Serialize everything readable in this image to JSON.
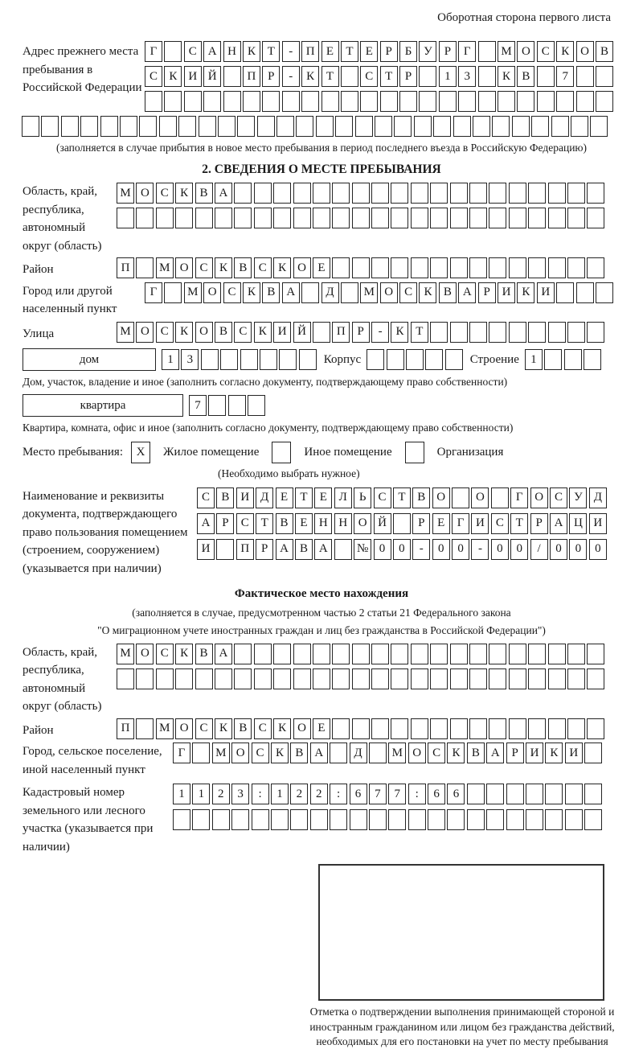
{
  "page": {
    "header_note": "Оборотная сторона первого листа"
  },
  "prev_address": {
    "label": "Адрес прежнего места пребывания в Российской Федерации",
    "rows": [
      [
        "Г",
        "",
        "С",
        "А",
        "Н",
        "К",
        "Т",
        "-",
        "П",
        "Е",
        "Т",
        "Е",
        "Р",
        "Б",
        "У",
        "Р",
        "Г",
        "",
        "М",
        "О",
        "С",
        "К",
        "О",
        "В"
      ],
      [
        "С",
        "К",
        "И",
        "Й",
        "",
        "П",
        "Р",
        "-",
        "К",
        "Т",
        "",
        "С",
        "Т",
        "Р",
        "",
        "1",
        "3",
        "",
        "К",
        "В",
        "",
        "7",
        "",
        ""
      ],
      [
        "",
        "",
        "",
        "",
        "",
        "",
        "",
        "",
        "",
        "",
        "",
        "",
        "",
        "",
        "",
        "",
        "",
        "",
        "",
        "",
        "",
        "",
        "",
        ""
      ]
    ],
    "full_row": [
      "",
      "",
      "",
      "",
      "",
      "",
      "",
      "",
      "",
      "",
      "",
      "",
      "",
      "",
      "",
      "",
      "",
      "",
      "",
      "",
      "",
      "",
      "",
      "",
      "",
      "",
      "",
      "",
      "",
      ""
    ],
    "note": "(заполняется в случае прибытия в новое место пребывания в период последнего въезда в Российскую Федерацию)"
  },
  "section2": {
    "title": "2. СВЕДЕНИЯ О МЕСТЕ ПРЕБЫВАНИЯ",
    "region": {
      "label": "Область, край, республика, автономный округ (область)",
      "rows": [
        [
          "М",
          "О",
          "С",
          "К",
          "В",
          "А",
          "",
          "",
          "",
          "",
          "",
          "",
          "",
          "",
          "",
          "",
          "",
          "",
          "",
          "",
          "",
          "",
          "",
          "",
          ""
        ],
        [
          "",
          "",
          "",
          "",
          "",
          "",
          "",
          "",
          "",
          "",
          "",
          "",
          "",
          "",
          "",
          "",
          "",
          "",
          "",
          "",
          "",
          "",
          "",
          "",
          ""
        ]
      ]
    },
    "district": {
      "label": "Район",
      "row": [
        "П",
        "",
        "М",
        "О",
        "С",
        "К",
        "В",
        "С",
        "К",
        "О",
        "Е",
        "",
        "",
        "",
        "",
        "",
        "",
        "",
        "",
        "",
        "",
        "",
        "",
        "",
        ""
      ]
    },
    "city": {
      "label": "Город или другой населенный пункт",
      "row": [
        "Г",
        "",
        "М",
        "О",
        "С",
        "К",
        "В",
        "А",
        "",
        "Д",
        "",
        "М",
        "О",
        "С",
        "К",
        "В",
        "А",
        "Р",
        "И",
        "К",
        "И",
        "",
        "",
        ""
      ]
    },
    "street": {
      "label": "Улица",
      "row": [
        "М",
        "О",
        "С",
        "К",
        "О",
        "В",
        "С",
        "К",
        "И",
        "Й",
        "",
        "П",
        "Р",
        "-",
        "К",
        "Т",
        "",
        "",
        "",
        "",
        "",
        "",
        "",
        "",
        ""
      ]
    },
    "house": {
      "type_label": "дом",
      "number": [
        "1",
        "3",
        "",
        "",
        "",
        "",
        "",
        ""
      ],
      "korpus_label": "Корпус",
      "korpus": [
        "",
        "",
        "",
        "",
        ""
      ],
      "stroenie_label": "Строение",
      "stroenie": [
        "1",
        "",
        "",
        ""
      ],
      "note": "Дом, участок, владение и иное (заполнить согласно документу, подтверждающему право собственности)"
    },
    "apartment": {
      "type_label": "квартира",
      "number": [
        "7",
        "",
        "",
        ""
      ],
      "note": "Квартира, комната, офис и иное (заполнить согласно документу, подтверждающему право собственности)"
    },
    "place_type": {
      "label": "Место пребывания:",
      "options": [
        {
          "label": "Жилое помещение",
          "mark": "X"
        },
        {
          "label": "Иное помещение",
          "mark": ""
        },
        {
          "label": "Организация",
          "mark": ""
        }
      ],
      "note": "(Необходимо выбрать нужное)"
    },
    "document": {
      "label": "Наименование и реквизиты документа, подтверждающего право пользования помещением (строением, сооружением) (указывается при наличии)",
      "rows": [
        [
          "С",
          "В",
          "И",
          "Д",
          "Е",
          "Т",
          "Е",
          "Л",
          "Ь",
          "С",
          "Т",
          "В",
          "О",
          "",
          "О",
          "",
          "Г",
          "О",
          "С",
          "У",
          "Д"
        ],
        [
          "А",
          "Р",
          "С",
          "Т",
          "В",
          "Е",
          "Н",
          "Н",
          "О",
          "Й",
          "",
          "Р",
          "Е",
          "Г",
          "И",
          "С",
          "Т",
          "Р",
          "А",
          "Ц",
          "И"
        ],
        [
          "И",
          "",
          "П",
          "Р",
          "А",
          "В",
          "А",
          "",
          "№",
          "0",
          "0",
          "-",
          "0",
          "0",
          "-",
          "0",
          "0",
          "/",
          "0",
          "0",
          "0"
        ]
      ]
    }
  },
  "actual_location": {
    "title": "Фактическое место нахождения",
    "note_line1": "(заполняется в случае, предусмотренном частью 2 статьи 21 Федерального закона",
    "note_line2": "\"О миграционном учете иностранных граждан и лиц без гражданства в Российской Федерации\")",
    "region": {
      "label": "Область, край, республика, автономный округ (область)",
      "rows": [
        [
          "М",
          "О",
          "С",
          "К",
          "В",
          "А",
          "",
          "",
          "",
          "",
          "",
          "",
          "",
          "",
          "",
          "",
          "",
          "",
          "",
          "",
          "",
          "",
          "",
          "",
          ""
        ],
        [
          "",
          "",
          "",
          "",
          "",
          "",
          "",
          "",
          "",
          "",
          "",
          "",
          "",
          "",
          "",
          "",
          "",
          "",
          "",
          "",
          "",
          "",
          "",
          "",
          ""
        ]
      ]
    },
    "district": {
      "label": "Район",
      "row": [
        "П",
        "",
        "М",
        "О",
        "С",
        "К",
        "В",
        "С",
        "К",
        "О",
        "Е",
        "",
        "",
        "",
        "",
        "",
        "",
        "",
        "",
        "",
        "",
        "",
        "",
        "",
        ""
      ]
    },
    "city": {
      "label": "Город, сельское поселение, иной населенный пункт",
      "row": [
        "Г",
        "",
        "М",
        "О",
        "С",
        "К",
        "В",
        "А",
        "",
        "Д",
        "",
        "М",
        "О",
        "С",
        "К",
        "В",
        "А",
        "Р",
        "И",
        "К",
        "И",
        ""
      ]
    },
    "cadastral": {
      "label": "Кадастровый номер земельного или лесного участка (указывается при наличии)",
      "rows": [
        [
          "1",
          "1",
          "2",
          "3",
          ":",
          "1",
          "2",
          "2",
          ":",
          "6",
          "7",
          "7",
          ":",
          "6",
          "6",
          "",
          "",
          "",
          "",
          "",
          "",
          ""
        ],
        [
          "",
          "",
          "",
          "",
          "",
          "",
          "",
          "",
          "",
          "",
          "",
          "",
          "",
          "",
          "",
          "",
          "",
          "",
          "",
          "",
          "",
          ""
        ]
      ]
    },
    "stamp_note": "Отметка о подтверждении выполнения принимающей стороной и иностранным гражданином или лицом без гражданства действий, необходимых для его постановки на учет по месту пребывания"
  }
}
